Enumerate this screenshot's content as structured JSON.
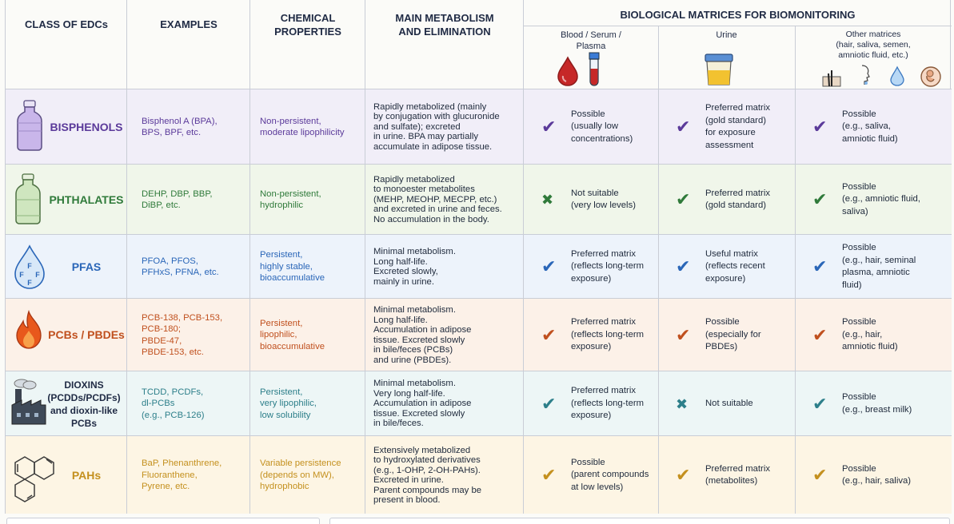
{
  "header": {
    "class": "CLASS OF EDCs",
    "examples": "EXAMPLES",
    "chem1": "CHEMICAL",
    "chem2": "PROPERTIES",
    "metab1": "MAIN METABOLISM",
    "metab2": "AND ELIMINATION",
    "bio": "BIOLOGICAL MATRICES FOR BIOMONITORING",
    "blood1": "Blood / Serum /",
    "blood2": "Plasma",
    "urine": "Urine",
    "other1": "Other matrices",
    "other2": "(hair, saliva, semen,",
    "other3": "amniotic fluid, etc.)"
  },
  "colors": {
    "bisphenols": "#5b3a9a",
    "phthalates": "#2f7a3a",
    "pfas": "#2a66b8",
    "pcbs": "#c0501e",
    "dioxins": "#2d7f8a",
    "pahs": "#c4901e"
  },
  "rows": [
    {
      "class": [
        "BISPHENOLS"
      ],
      "icon": "bottle-icon",
      "examples": [
        "Bisphenol A (BPA),",
        "BPS, BPF, etc."
      ],
      "chem": [
        "Non-persistent,",
        "moderate lipophilicity"
      ],
      "metab": [
        "Rapidly metabolized (mainly",
        "by conjugation with glucuronide",
        "and sulfate); excreted",
        "in urine. BPA may partially",
        "accumulate in adipose tissue."
      ],
      "blood": {
        "mark": "check",
        "text": [
          "Possible",
          "(usually low",
          "concentrations)"
        ]
      },
      "urine": {
        "mark": "check",
        "text": [
          "Preferred matrix",
          "(gold standard)",
          "for exposure",
          "assessment"
        ]
      },
      "other": {
        "mark": "check",
        "text": [
          "Possible",
          "(e.g., saliva,",
          "amniotic fluid)"
        ]
      }
    },
    {
      "class": [
        "PHTHALATES"
      ],
      "icon": "jug-icon",
      "examples": [
        "DEHP, DBP, BBP,",
        "DiBP, etc."
      ],
      "chem": [
        "Non-persistent,",
        "hydrophilic"
      ],
      "metab": [
        "Rapidly metabolized",
        "to monoester metabolites",
        "(MEHP, MEOHP, MECPP, etc.)",
        "and excreted in urine and feces.",
        "No accumulation in the body."
      ],
      "blood": {
        "mark": "cross",
        "text": [
          "Not suitable",
          "(very low levels)"
        ]
      },
      "urine": {
        "mark": "check",
        "text": [
          "Preferred matrix",
          "(gold standard)"
        ]
      },
      "other": {
        "mark": "check",
        "text": [
          "Possible",
          "(e.g., amniotic fluid,",
          "saliva)"
        ]
      }
    },
    {
      "class": [
        "PFAS"
      ],
      "icon": "droplet-icon",
      "examples": [
        "PFOA, PFOS,",
        "PFHxS, PFNA, etc."
      ],
      "chem": [
        "Persistent,",
        "highly stable,",
        "bioaccumulative"
      ],
      "metab": [
        "Minimal metabolism.",
        "Long half-life.",
        "Excreted slowly,",
        "mainly in urine."
      ],
      "blood": {
        "mark": "check",
        "text": [
          "Preferred matrix",
          "(reflects long-term",
          "exposure)"
        ]
      },
      "urine": {
        "mark": "check",
        "text": [
          "Useful matrix",
          "(reflects recent",
          "exposure)"
        ]
      },
      "other": {
        "mark": "check",
        "text": [
          "Possible",
          "(e.g., hair, seminal",
          "plasma, amniotic",
          "fluid)"
        ]
      }
    },
    {
      "class": [
        "PCBs / PBDEs"
      ],
      "icon": "flame-icon",
      "examples": [
        "PCB-138, PCB-153,",
        "PCB-180;",
        "PBDE-47,",
        "PBDE-153, etc."
      ],
      "chem": [
        "Persistent,",
        "lipophilic,",
        "bioaccumulative"
      ],
      "metab": [
        "Minimal metabolism.",
        "Long half-life.",
        "Accumulation in adipose",
        "tissue. Excreted slowly",
        "in bile/feces (PCBs)",
        "and urine (PBDEs)."
      ],
      "blood": {
        "mark": "check",
        "text": [
          "Preferred matrix",
          "(reflects long-term",
          "exposure)"
        ]
      },
      "urine": {
        "mark": "check",
        "text": [
          "Possible",
          "(especially for",
          "PBDEs)"
        ]
      },
      "other": {
        "mark": "check",
        "text": [
          "Possible",
          "(e.g., hair,",
          "amniotic fluid)"
        ]
      }
    },
    {
      "class": [
        "DIOXINS",
        "(PCDDs/PCDFs)",
        "and dioxin-like",
        "PCBs"
      ],
      "icon": "factory-icon",
      "examples": [
        "TCDD, PCDFs,",
        "dl-PCBs",
        "(e.g., PCB-126)"
      ],
      "chem": [
        "Persistent,",
        "very lipophilic,",
        "low solubility"
      ],
      "metab": [
        "Minimal metabolism.",
        "Very long half-life.",
        "Accumulation in adipose",
        "tissue. Excreted slowly",
        "in bile/feces."
      ],
      "blood": {
        "mark": "check",
        "text": [
          "Preferred matrix",
          "(reflects long-term",
          "exposure)"
        ]
      },
      "urine": {
        "mark": "cross",
        "text": [
          "Not suitable"
        ]
      },
      "other": {
        "mark": "check",
        "text": [
          "Possible",
          "(e.g., breast milk)"
        ]
      }
    },
    {
      "class": [
        "PAHs"
      ],
      "icon": "molecule-icon",
      "examples": [
        "BaP, Phenanthrene,",
        "Fluoranthene,",
        "Pyrene, etc."
      ],
      "chem": [
        "Variable persistence",
        "(depends on MW),",
        "hydrophobic"
      ],
      "metab": [
        "Extensively metabolized",
        "to hydroxylated derivatives",
        "(e.g., 1-OHP, 2-OH-PAHs).",
        "Excreted in urine.",
        "Parent compounds may be",
        "present in blood."
      ],
      "blood": {
        "mark": "check",
        "text": [
          "Possible",
          "(parent compounds",
          "at low levels)"
        ]
      },
      "urine": {
        "mark": "check",
        "text": [
          "Preferred matrix",
          "(metabolites)"
        ]
      },
      "other": {
        "mark": "check",
        "text": [
          "Possible",
          "(e.g., hair, saliva)"
        ]
      }
    }
  ]
}
